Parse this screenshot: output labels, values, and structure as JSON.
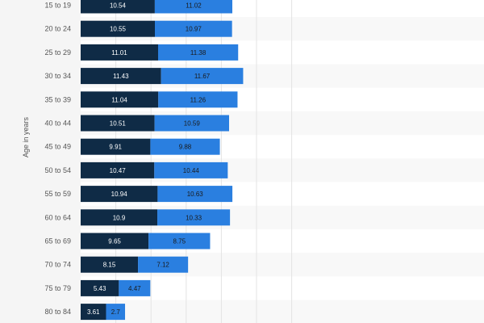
{
  "chart_data": {
    "type": "bar",
    "orientation": "horizontal",
    "stacked": true,
    "ylabel": "Age in years",
    "categories": [
      "15 to 19",
      "20 to 24",
      "25 to 29",
      "30 to 34",
      "35 to 39",
      "40 to 44",
      "45 to 49",
      "50 to 54",
      "55 to 59",
      "60 to 64",
      "65 to 69",
      "70 to 74",
      "75 to 79",
      "80 to 84"
    ],
    "series": [
      {
        "color": "#0f2b46",
        "values": [
          10.54,
          10.55,
          11.01,
          11.43,
          11.04,
          10.51,
          9.91,
          10.47,
          10.94,
          10.9,
          9.65,
          8.15,
          5.43,
          3.61
        ]
      },
      {
        "color": "#2a7fe0",
        "values": [
          11.02,
          10.97,
          11.38,
          11.67,
          11.26,
          10.59,
          9.88,
          10.44,
          10.63,
          10.33,
          8.75,
          7.12,
          4.47,
          2.7
        ]
      }
    ],
    "value_labels": [
      [
        "10.54",
        "10.55",
        "11.01",
        "11.43",
        "11.04",
        "10.51",
        "9.91",
        "10.47",
        "10.94",
        "10.9",
        "9.65",
        "8.15",
        "5.43",
        "3.61"
      ],
      [
        "11.02",
        "10.97",
        "11.38",
        "11.67",
        "11.26",
        "10.59",
        "9.88",
        "10.44",
        "10.63",
        "10.33",
        "8.75",
        "7.12",
        "4.47",
        "2.7"
      ]
    ],
    "xlim": [
      0,
      30
    ],
    "grid": true,
    "background_colors": {
      "plot": "#f8f8f8",
      "row_band": "#ffffff",
      "grid": "#e3e3e3"
    }
  }
}
